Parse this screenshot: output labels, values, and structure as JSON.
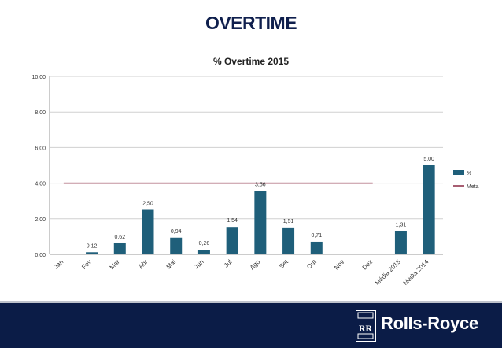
{
  "header": {
    "title": "OVERTIME"
  },
  "chart_data": {
    "type": "bar",
    "title": "% Overtime 2015",
    "categories": [
      "Jan",
      "Fev",
      "Mar",
      "Abr",
      "Mai",
      "Jun",
      "Jul",
      "Ago",
      "Set",
      "Out",
      "Nov",
      "Dez",
      "Média 2015",
      "Média 2014"
    ],
    "series": [
      {
        "name": "%",
        "type": "bar",
        "values": [
          null,
          0.12,
          0.62,
          2.5,
          0.94,
          0.26,
          1.54,
          3.56,
          1.51,
          0.71,
          null,
          null,
          1.31,
          5.0
        ],
        "labels": [
          "",
          "0,12",
          "0,62",
          "2,50",
          "0,94",
          "0,26",
          "1,54",
          "3,56",
          "1,51",
          "0,71",
          "",
          "",
          "1,31",
          "5,00"
        ],
        "color": "#1f5f7a"
      },
      {
        "name": "Meta",
        "type": "line",
        "values": [
          4,
          4,
          4,
          4,
          4,
          4,
          4,
          4,
          4,
          4,
          4,
          4,
          null,
          null
        ],
        "color": "#8b2942"
      }
    ],
    "ylim": [
      0,
      10
    ],
    "yticks": [
      "0,00",
      "2,00",
      "4,00",
      "6,00",
      "8,00",
      "10,00"
    ],
    "ytick_values": [
      0,
      2,
      4,
      6,
      8,
      10
    ],
    "grid": true,
    "legend": "right",
    "xlabel": "",
    "ylabel": ""
  },
  "footer": {
    "brand": "Rolls-Royce",
    "badge_text": "RR"
  }
}
